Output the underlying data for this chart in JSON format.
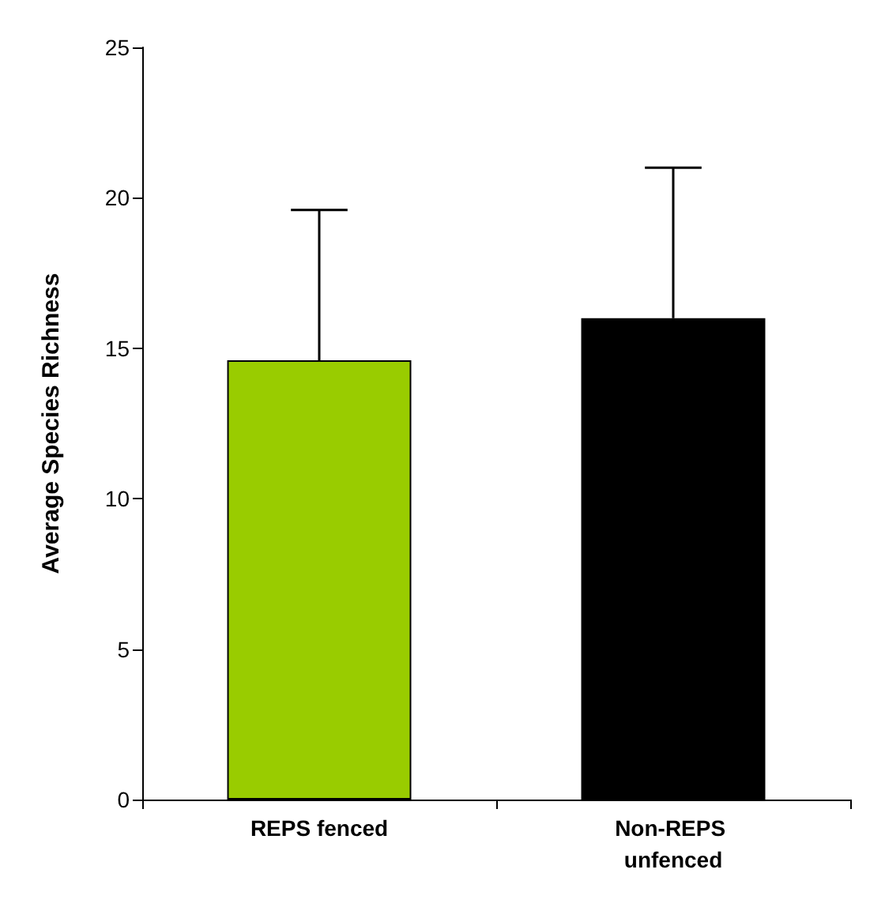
{
  "chart_data": {
    "type": "bar",
    "ylabel": "Average Species Richness",
    "categories": [
      "REPS fenced",
      "Non-REPS unfenced"
    ],
    "values": [
      14.6,
      16.0
    ],
    "errors": [
      [
        14.6,
        19.6
      ],
      [
        16.0,
        21.0
      ]
    ],
    "colors": [
      "#99cc00",
      "#000000"
    ],
    "ylim": [
      0,
      25
    ],
    "yticks": [
      0,
      5,
      10,
      15,
      20,
      25
    ],
    "grid": false
  }
}
